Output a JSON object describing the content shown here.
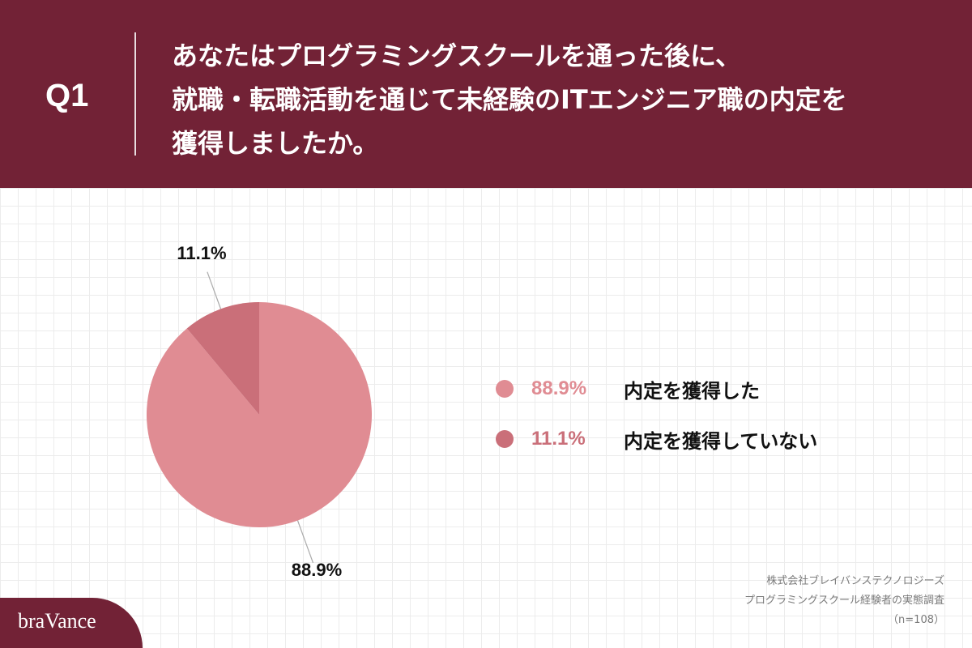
{
  "header": {
    "question_number": "Q1",
    "question_lines": [
      "あなたはプログラミングスクールを通った後に、",
      "就職・転職活動を通じて未経験のITエンジニア職の内定を",
      "獲得しましたか。"
    ]
  },
  "colors": {
    "background": "#722236",
    "panel": "#ffffff",
    "grid": "#ececec",
    "slice_obtained": "#e08c93",
    "slice_not_obtained": "#ca6f79",
    "leader_line": "#aaaaaa"
  },
  "chart_data": {
    "type": "pie",
    "title": "",
    "start_angle_deg": 0,
    "direction": "clockwise",
    "slices": [
      {
        "label": "内定を獲得した",
        "value": 88.9,
        "value_label": "88.9%",
        "color": "#e08c93"
      },
      {
        "label": "内定を獲得していない",
        "value": 11.1,
        "value_label": "11.1%",
        "color": "#ca6f79"
      }
    ],
    "legend": [
      {
        "percent": "88.9%",
        "label": "内定を獲得した",
        "color": "#e08c93"
      },
      {
        "percent": "11.1%",
        "label": "内定を獲得していない",
        "color": "#ca6f79"
      }
    ],
    "legend_placement": "right",
    "grid": true
  },
  "source": {
    "company": "株式会社ブレイバンステクノロジーズ",
    "survey": "プログラミングスクール経験者の実態調査",
    "sample": "（n=108）"
  },
  "logo": {
    "text": "braVance"
  }
}
